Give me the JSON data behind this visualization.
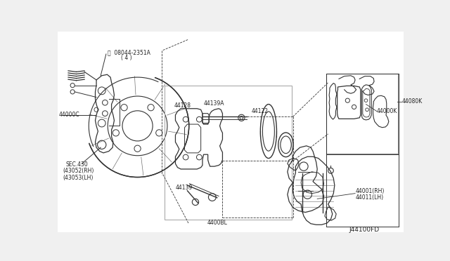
{
  "bg_color": "#f0f0f0",
  "line_color": "#333333",
  "label_color": "#222222",
  "footer_text": "J44100FD",
  "fig_width": 6.4,
  "fig_height": 3.72,
  "dpi": 100,
  "labels": {
    "bolt_label": "B  08044-2351A",
    "bolt_qty": "(4)",
    "knuckle_label": "44000C",
    "sec_label": "SEC.430",
    "rh_label": "(43052(RH)",
    "lh_label": "(43053(LH)",
    "pin_label": "44139A",
    "bracket_label": "44128",
    "bolt2_label": "44139",
    "piston_label": "44122",
    "assy_label": "4400BL",
    "pad_kit_label": "44000K",
    "pad_assy_label": "44080K",
    "caliper_rh": "44001(RH)",
    "caliper_lh": "44011(LH)"
  }
}
